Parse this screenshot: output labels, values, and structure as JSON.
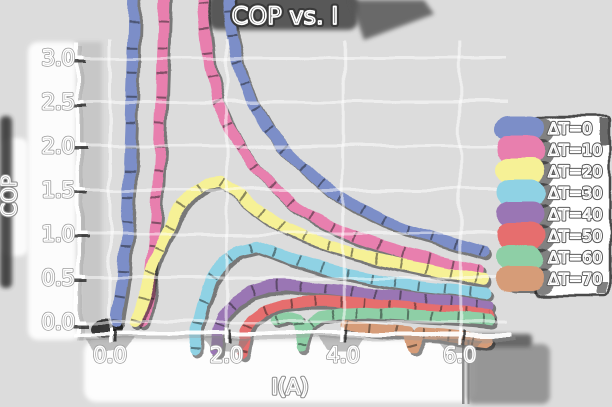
{
  "title": "COP vs. I",
  "axes": {
    "xlabel": "I(A)",
    "ylabel": "COP",
    "xticks": [
      "0.0",
      "2.0",
      "4.0",
      "6.0"
    ],
    "xtick_values": [
      0,
      2,
      4,
      6
    ],
    "yticks": [
      "0.0",
      "0.5",
      "1.0",
      "1.5",
      "2.0",
      "2.5",
      "3.0"
    ],
    "ytick_values": [
      0,
      0.5,
      1.0,
      1.5,
      2.0,
      2.5,
      3.0
    ]
  },
  "legend": {
    "entries": [
      {
        "label": "ΔT=0",
        "color": "#7b8ec8"
      },
      {
        "label": "ΔT=10",
        "color": "#e87fae"
      },
      {
        "label": "ΔT=20",
        "color": "#f6f196"
      },
      {
        "label": "ΔT=30",
        "color": "#8fd2e4"
      },
      {
        "label": "ΔT=40",
        "color": "#9a76b4"
      },
      {
        "label": "ΔT=50",
        "color": "#e66e6e"
      },
      {
        "label": "ΔT=60",
        "color": "#8ecfa6"
      },
      {
        "label": "ΔT=70",
        "color": "#d69c78"
      }
    ]
  },
  "colors": {
    "background": "#dcdcdc",
    "text": "#ffffff",
    "text_outline": "#666666",
    "grid": "#ffffff",
    "ink": "#1a1a1a"
  },
  "chart_data": {
    "type": "line",
    "title": "COP vs. I",
    "xlabel": "I(A)",
    "ylabel": "COP",
    "xlim": [
      -0.55,
      6.9
    ],
    "ylim": [
      -0.45,
      3.45
    ],
    "grid": true,
    "legend_position": "right",
    "style": "xkcd-sketch, thick hand-drawn lines, white outlined text on gray",
    "series": [
      {
        "name": "ΔT=0",
        "color": "#7b8ec8",
        "points": [
          [
            0.1,
            0.0
          ],
          [
            0.22,
            0.5
          ],
          [
            0.3,
            1.4
          ],
          [
            0.38,
            3.0
          ],
          [
            0.44,
            4.6
          ],
          [
            0.8,
            5.4
          ],
          [
            1.5,
            5.2
          ],
          [
            1.95,
            4.4
          ],
          [
            2.1,
            3.2
          ],
          [
            2.25,
            2.8
          ],
          [
            2.45,
            2.5
          ],
          [
            2.7,
            2.2
          ],
          [
            3.0,
            1.98
          ],
          [
            3.3,
            1.78
          ],
          [
            3.6,
            1.6
          ],
          [
            3.95,
            1.42
          ],
          [
            4.3,
            1.28
          ],
          [
            4.7,
            1.15
          ],
          [
            5.1,
            1.05
          ],
          [
            5.5,
            0.97
          ],
          [
            5.9,
            0.89
          ],
          [
            6.15,
            0.84
          ],
          [
            6.4,
            0.79
          ]
        ]
      },
      {
        "name": "ΔT=10",
        "color": "#e87fae",
        "points": [
          [
            0.55,
            0.0
          ],
          [
            0.68,
            0.5
          ],
          [
            0.78,
            1.2
          ],
          [
            0.88,
            2.6
          ],
          [
            0.97,
            4.4
          ],
          [
            1.2,
            5.2
          ],
          [
            1.45,
            4.6
          ],
          [
            1.6,
            3.6
          ],
          [
            1.72,
            2.9
          ],
          [
            1.85,
            2.5
          ],
          [
            2.05,
            2.2
          ],
          [
            2.3,
            1.95
          ],
          [
            2.55,
            1.72
          ],
          [
            2.85,
            1.5
          ],
          [
            3.15,
            1.32
          ],
          [
            3.5,
            1.18
          ],
          [
            3.9,
            1.05
          ],
          [
            4.3,
            0.95
          ],
          [
            4.7,
            0.86
          ],
          [
            5.1,
            0.78
          ],
          [
            5.5,
            0.71
          ],
          [
            5.9,
            0.65
          ],
          [
            6.3,
            0.59
          ]
        ]
      },
      {
        "name": "ΔT=20",
        "color": "#f6f196",
        "points": [
          [
            0.42,
            0.0
          ],
          [
            0.6,
            0.4
          ],
          [
            0.85,
            0.85
          ],
          [
            1.1,
            1.2
          ],
          [
            1.4,
            1.45
          ],
          [
            1.65,
            1.58
          ],
          [
            1.9,
            1.6
          ],
          [
            2.15,
            1.48
          ],
          [
            2.45,
            1.32
          ],
          [
            2.75,
            1.18
          ],
          [
            3.05,
            1.05
          ],
          [
            3.4,
            0.95
          ],
          [
            3.8,
            0.86
          ],
          [
            4.2,
            0.79
          ],
          [
            4.7,
            0.71
          ],
          [
            5.2,
            0.64
          ],
          [
            5.7,
            0.57
          ],
          [
            6.1,
            0.52
          ],
          [
            6.4,
            0.48
          ]
        ]
      },
      {
        "name": "ΔT=30",
        "color": "#8fd2e4",
        "points": [
          [
            1.47,
            -0.32
          ],
          [
            1.5,
            -0.05
          ],
          [
            1.58,
            0.2
          ],
          [
            1.75,
            0.48
          ],
          [
            1.95,
            0.68
          ],
          [
            2.2,
            0.82
          ],
          [
            2.5,
            0.87
          ],
          [
            2.8,
            0.8
          ],
          [
            3.1,
            0.72
          ],
          [
            3.45,
            0.65
          ],
          [
            3.85,
            0.58
          ],
          [
            4.3,
            0.52
          ],
          [
            4.8,
            0.46
          ],
          [
            5.3,
            0.41
          ],
          [
            5.8,
            0.37
          ],
          [
            6.15,
            0.35
          ],
          [
            6.45,
            0.33
          ]
        ]
      },
      {
        "name": "ΔT=40",
        "color": "#9a76b4",
        "points": [
          [
            1.82,
            -0.33
          ],
          [
            1.86,
            -0.1
          ],
          [
            1.95,
            0.08
          ],
          [
            2.15,
            0.25
          ],
          [
            2.4,
            0.36
          ],
          [
            2.7,
            0.42
          ],
          [
            3.0,
            0.43
          ],
          [
            3.4,
            0.4
          ],
          [
            3.8,
            0.37
          ],
          [
            4.3,
            0.33
          ],
          [
            4.8,
            0.3
          ],
          [
            5.3,
            0.27
          ],
          [
            5.8,
            0.23
          ],
          [
            6.2,
            0.2
          ],
          [
            6.5,
            0.18
          ]
        ]
      },
      {
        "name": "ΔT=50",
        "color": "#e66e6e",
        "points": [
          [
            2.28,
            -0.33
          ],
          [
            2.34,
            -0.1
          ],
          [
            2.45,
            0.04
          ],
          [
            2.65,
            0.14
          ],
          [
            2.95,
            0.21
          ],
          [
            3.3,
            0.24
          ],
          [
            3.7,
            0.24
          ],
          [
            4.1,
            0.22
          ],
          [
            4.5,
            0.2
          ],
          [
            4.9,
            0.17
          ],
          [
            5.3,
            0.15
          ],
          [
            5.7,
            0.12
          ],
          [
            6.1,
            0.1
          ],
          [
            6.5,
            0.08
          ]
        ]
      },
      {
        "name": "ΔT=60",
        "color": "#8ecfa6",
        "points": [
          [
            2.85,
            0.02
          ],
          [
            3.05,
            0.05
          ],
          [
            3.2,
            0.02
          ],
          [
            3.28,
            -0.3
          ],
          [
            3.38,
            -0.05
          ],
          [
            3.6,
            0.06
          ],
          [
            3.95,
            0.1
          ],
          [
            4.4,
            0.11
          ],
          [
            4.9,
            0.09
          ],
          [
            5.4,
            0.07
          ],
          [
            5.9,
            0.05
          ],
          [
            6.3,
            0.03
          ],
          [
            6.5,
            0.02
          ]
        ]
      },
      {
        "name": "ΔT=70",
        "color": "#d69c78",
        "points": [
          [
            4.05,
            -0.03
          ],
          [
            4.35,
            -0.06
          ],
          [
            4.75,
            -0.09
          ],
          [
            5.1,
            -0.11
          ],
          [
            5.18,
            -0.3
          ],
          [
            5.3,
            -0.12
          ],
          [
            5.7,
            -0.14
          ],
          [
            6.1,
            -0.17
          ],
          [
            6.5,
            -0.2
          ]
        ]
      }
    ]
  }
}
